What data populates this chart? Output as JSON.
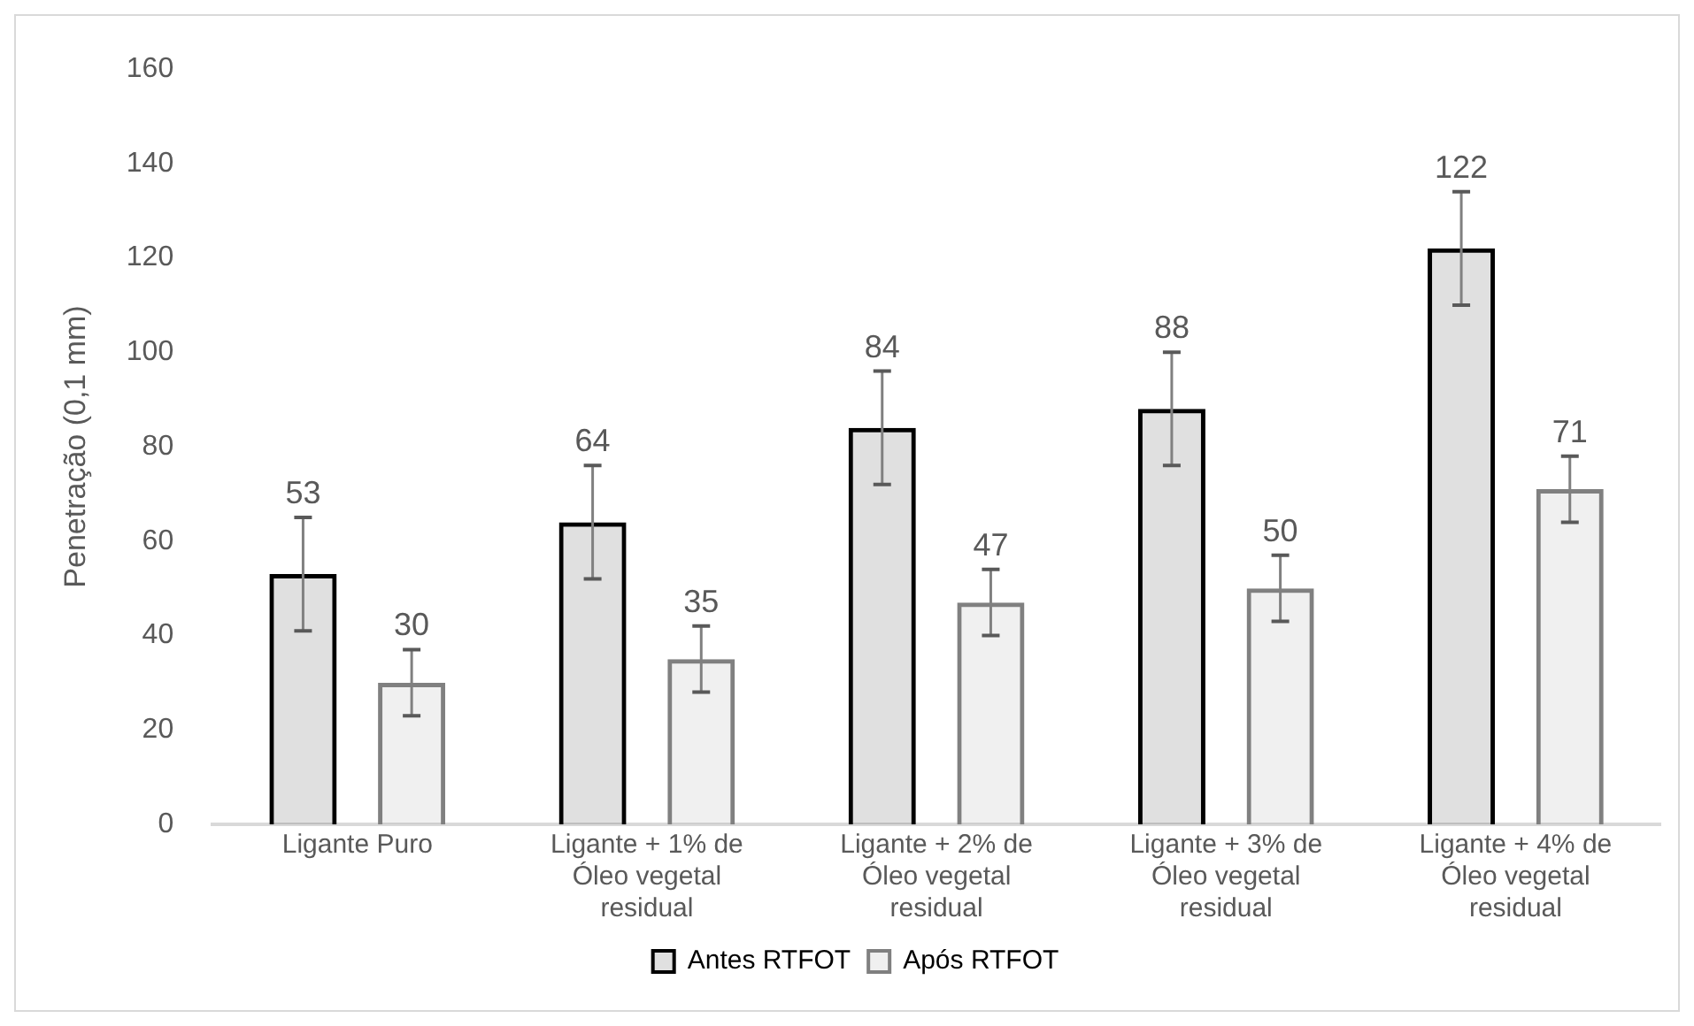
{
  "chart_data": {
    "type": "bar",
    "ylabel": "Penetração (0,1 mm)",
    "categories": [
      "Ligante Puro",
      "Ligante + 1% de Óleo vegetal residual",
      "Ligante + 2% de Óleo vegetal residual",
      "Ligante + 3% de Óleo vegetal residual",
      "Ligante + 4% de Óleo vegetal residual"
    ],
    "series": [
      {
        "name": "Antes RTFOT",
        "color": "#000000",
        "values": [
          53,
          64,
          84,
          88,
          122
        ],
        "errors": [
          12,
          12,
          12,
          12,
          12
        ]
      },
      {
        "name": "Após RTFOT",
        "color": "#808080",
        "values": [
          30,
          35,
          47,
          50,
          71
        ],
        "errors": [
          7,
          7,
          7,
          7,
          7
        ]
      }
    ],
    "ylim": [
      0,
      160
    ],
    "yticks": [
      0,
      20,
      40,
      60,
      80,
      100,
      120,
      140,
      160
    ],
    "grid": false,
    "legend": "bottom",
    "data_labels": true
  }
}
